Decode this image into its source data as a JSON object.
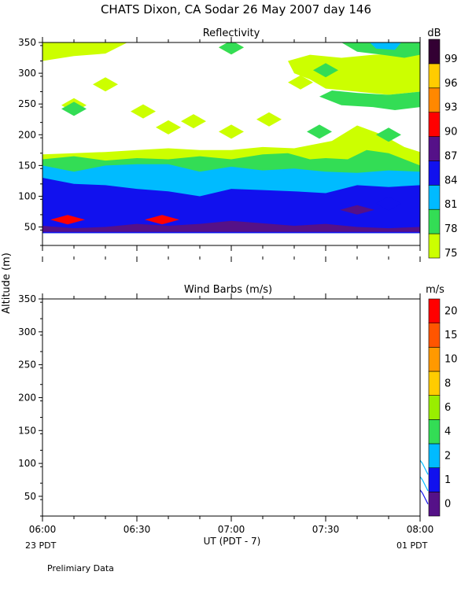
{
  "header": {
    "title": "CHATS Dixon, CA  Sodar  26 May 2007  day 146",
    "ylabel": "Altitude (m)",
    "xlabel": "UT  (PDT - 7)",
    "left_note": "23 PDT",
    "right_note": "01 PDT",
    "footnote": "Prelimiary Data"
  },
  "chart_data": [
    {
      "type": "heatmap",
      "title": "Reflectivity",
      "x_range": [
        "06:00",
        "08:00"
      ],
      "xlim_minutes": [
        0,
        120
      ],
      "ylim": [
        20,
        350
      ],
      "y_ticks": [
        50,
        100,
        150,
        200,
        250,
        300,
        350
      ],
      "x_tick_labels": [
        "06:00",
        "06:30",
        "07:00",
        "07:30",
        "08:00"
      ],
      "colorbar": {
        "unit": "dB",
        "labels": [
          "75",
          "78",
          "81",
          "84",
          "87",
          "90",
          "93",
          "96",
          "99"
        ],
        "colors": [
          "#ccff00",
          "#33dd55",
          "#00bbff",
          "#1111ee",
          "#551188",
          "#ff0000",
          "#ff8800",
          "#ffcc00",
          "#330033"
        ]
      },
      "layers": [
        {
          "level": 75,
          "color": "#ccff00",
          "polygon": [
            [
              0,
              40
            ],
            [
              120,
              40
            ],
            [
              120,
              172
            ],
            [
              115,
              180
            ],
            [
              108,
              200
            ],
            [
              100,
              215
            ],
            [
              92,
              190
            ],
            [
              80,
              178
            ],
            [
              70,
              180
            ],
            [
              60,
              175
            ],
            [
              50,
              175
            ],
            [
              40,
              178
            ],
            [
              30,
              175
            ],
            [
              20,
              172
            ],
            [
              10,
              170
            ],
            [
              0,
              168
            ]
          ]
        },
        {
          "level": 78,
          "color": "#33dd55",
          "polygon": [
            [
              0,
              40
            ],
            [
              120,
              40
            ],
            [
              120,
              150
            ],
            [
              115,
              160
            ],
            [
              110,
              170
            ],
            [
              103,
              175
            ],
            [
              97,
              160
            ],
            [
              90,
              162
            ],
            [
              85,
              160
            ],
            [
              78,
              170
            ],
            [
              70,
              168
            ],
            [
              60,
              160
            ],
            [
              50,
              165
            ],
            [
              40,
              160
            ],
            [
              30,
              162
            ],
            [
              20,
              158
            ],
            [
              10,
              165
            ],
            [
              0,
              160
            ]
          ]
        },
        {
          "level": 81,
          "color": "#00bbff",
          "polygon": [
            [
              0,
              40
            ],
            [
              120,
              40
            ],
            [
              120,
              140
            ],
            [
              110,
              142
            ],
            [
              100,
              138
            ],
            [
              90,
              140
            ],
            [
              80,
              145
            ],
            [
              70,
              142
            ],
            [
              60,
              148
            ],
            [
              50,
              140
            ],
            [
              40,
              152
            ],
            [
              30,
              152
            ],
            [
              20,
              150
            ],
            [
              10,
              140
            ],
            [
              0,
              150
            ]
          ]
        },
        {
          "level": 84,
          "color": "#1111ee",
          "polygon": [
            [
              0,
              40
            ],
            [
              120,
              40
            ],
            [
              120,
              118
            ],
            [
              110,
              115
            ],
            [
              100,
              118
            ],
            [
              90,
              105
            ],
            [
              80,
              108
            ],
            [
              70,
              110
            ],
            [
              60,
              112
            ],
            [
              50,
              100
            ],
            [
              40,
              108
            ],
            [
              30,
              112
            ],
            [
              20,
              118
            ],
            [
              10,
              120
            ],
            [
              0,
              130
            ]
          ]
        },
        {
          "level": 87,
          "color": "#551188",
          "polygon": [
            [
              0,
              52
            ],
            [
              10,
              48
            ],
            [
              20,
              50
            ],
            [
              30,
              55
            ],
            [
              40,
              52
            ],
            [
              50,
              55
            ],
            [
              60,
              60
            ],
            [
              70,
              56
            ],
            [
              80,
              52
            ],
            [
              90,
              55
            ],
            [
              100,
              50
            ],
            [
              110,
              48
            ],
            [
              120,
              50
            ],
            [
              120,
              42
            ],
            [
              0,
              42
            ]
          ]
        }
      ],
      "patches": [
        {
          "level": 75,
          "color": "#ccff00",
          "x": 10,
          "y": 248
        },
        {
          "level": 75,
          "color": "#ccff00",
          "x": 20,
          "y": 282
        },
        {
          "level": 75,
          "color": "#ccff00",
          "x": 32,
          "y": 238
        },
        {
          "level": 75,
          "color": "#ccff00",
          "x": 40,
          "y": 212
        },
        {
          "level": 75,
          "color": "#ccff00",
          "x": 48,
          "y": 222
        },
        {
          "level": 75,
          "color": "#ccff00",
          "x": 60,
          "y": 205
        },
        {
          "level": 75,
          "color": "#ccff00",
          "x": 72,
          "y": 225
        },
        {
          "level": 75,
          "color": "#ccff00",
          "x": 82,
          "y": 285
        },
        {
          "level": 75,
          "color": "#ccff00",
          "x": 60,
          "y": 342
        },
        {
          "level": 78,
          "color": "#33dd55",
          "x": 10,
          "y": 242
        },
        {
          "level": 78,
          "color": "#33dd55",
          "x": 60,
          "y": 342
        },
        {
          "level": 78,
          "color": "#33dd55",
          "x": 90,
          "y": 305
        },
        {
          "level": 78,
          "color": "#33dd55",
          "x": 88,
          "y": 205
        },
        {
          "level": 78,
          "color": "#33dd55",
          "x": 110,
          "y": 200
        },
        {
          "level": 84,
          "color": "#1111ee",
          "x": 110,
          "y": 88
        },
        {
          "level": 87,
          "color": "#551188",
          "x": 100,
          "y": 78
        },
        {
          "level": 90,
          "color": "#ff0000",
          "x": 8,
          "y": 62
        },
        {
          "level": 90,
          "color": "#ff0000",
          "x": 38,
          "y": 62
        }
      ],
      "top_right_region": {
        "level": 75,
        "color": "#ccff00",
        "polygon": [
          [
            78,
            320
          ],
          [
            85,
            330
          ],
          [
            95,
            325
          ],
          [
            105,
            330
          ],
          [
            115,
            332
          ],
          [
            120,
            330
          ],
          [
            120,
            270
          ],
          [
            110,
            265
          ],
          [
            100,
            270
          ],
          [
            90,
            275
          ],
          [
            85,
            290
          ],
          [
            80,
            300
          ]
        ],
        "inner_level": 78,
        "inner_color": "#33dd55",
        "inner_polygon": [
          [
            95,
            350
          ],
          [
            120,
            350
          ],
          [
            120,
            330
          ],
          [
            115,
            325
          ],
          [
            108,
            330
          ],
          [
            100,
            335
          ]
        ],
        "core_level": 81,
        "core_color": "#00bbff",
        "core_polygon": [
          [
            104,
            350
          ],
          [
            114,
            350
          ],
          [
            112,
            338
          ],
          [
            106,
            340
          ]
        ]
      },
      "top_left_region": {
        "level": 75,
        "color": "#ccff00",
        "polygon": [
          [
            0,
            320
          ],
          [
            10,
            328
          ],
          [
            20,
            332
          ],
          [
            27,
            350
          ],
          [
            0,
            350
          ]
        ]
      },
      "right_band": {
        "level": 78,
        "color": "#33dd55",
        "polygon": [
          [
            88,
            262
          ],
          [
            95,
            248
          ],
          [
            105,
            245
          ],
          [
            112,
            240
          ],
          [
            120,
            245
          ],
          [
            120,
            270
          ],
          [
            110,
            265
          ],
          [
            100,
            268
          ],
          [
            92,
            272
          ]
        ]
      }
    },
    {
      "type": "scatter",
      "title": "Wind Barbs (m/s)",
      "x_range": [
        "06:00",
        "08:00"
      ],
      "xlim_minutes": [
        0,
        120
      ],
      "ylim": [
        20,
        350
      ],
      "y_ticks": [
        50,
        100,
        150,
        200,
        250,
        300,
        350
      ],
      "x_tick_labels": [
        "06:00",
        "06:30",
        "07:00",
        "07:30",
        "08:00"
      ],
      "colorbar": {
        "unit": "m/s",
        "labels": [
          "0",
          "1",
          "2",
          "4",
          "6",
          "8",
          "10",
          "15",
          "20"
        ],
        "colors": [
          "#551188",
          "#1111ee",
          "#00bbff",
          "#33dd55",
          "#99ee00",
          "#ffcc00",
          "#ff9900",
          "#ff5500",
          "#ff0000"
        ]
      },
      "barbs": [
        {
          "x": 120,
          "y": 100,
          "speed": 2
        },
        {
          "x": 120,
          "y": 75,
          "speed": 2
        },
        {
          "x": 120,
          "y": 55,
          "speed": 1
        }
      ]
    }
  ]
}
